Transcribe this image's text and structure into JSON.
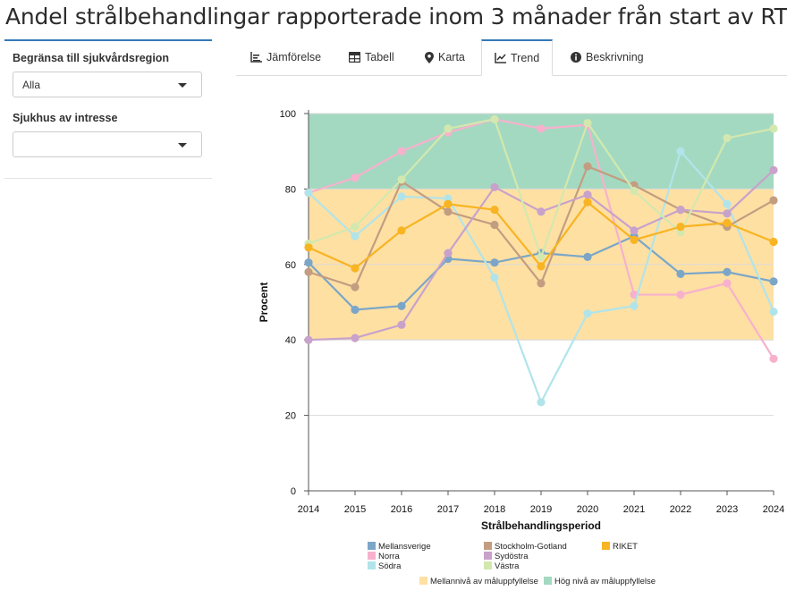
{
  "page": {
    "title": "Andel strålbehandlingar rapporterade inom 3 månader från start av RT"
  },
  "sidebar": {
    "region_label": "Begränsa till sjukvårdsregion",
    "region_value": "Alla",
    "hospital_label": "Sjukhus av intresse",
    "hospital_value": ""
  },
  "tabs": [
    {
      "label": "Jämförelse",
      "icon": "bar-chart-icon",
      "active": false
    },
    {
      "label": "Tabell",
      "icon": "table-icon",
      "active": false
    },
    {
      "label": "Karta",
      "icon": "map-marker-icon",
      "active": false
    },
    {
      "label": "Trend",
      "icon": "line-chart-icon",
      "active": true
    },
    {
      "label": "Beskrivning",
      "icon": "info-circle-icon",
      "active": false
    }
  ],
  "chart_data": {
    "type": "line",
    "xlabel": "Strålbehandlingsperiod",
    "ylabel": "Procent",
    "ylim": [
      0,
      100
    ],
    "yticks": [
      0,
      20,
      40,
      60,
      80,
      100
    ],
    "x": [
      2014,
      2015,
      2016,
      2017,
      2018,
      2019,
      2020,
      2021,
      2022,
      2023,
      2024
    ],
    "bands": [
      {
        "name": "Mellannivå av måluppfyllelse",
        "from": 40,
        "to": 80,
        "color": "#fee0a3"
      },
      {
        "name": "Hög nivå av måluppfyllelse",
        "from": 80,
        "to": 100,
        "color": "#a3d9c1"
      }
    ],
    "series": [
      {
        "name": "Mellansverige",
        "color": "#7ba6c8",
        "values": [
          60.5,
          48,
          49,
          61.5,
          60.5,
          63,
          62,
          67.5,
          57.5,
          58,
          55.5
        ]
      },
      {
        "name": "Norra",
        "color": "#f7b1cd",
        "values": [
          79,
          83,
          90,
          95,
          98.5,
          96,
          97,
          52,
          52,
          55,
          35
        ]
      },
      {
        "name": "Södra",
        "color": "#b1e4ea",
        "values": [
          79,
          67.5,
          78,
          77.5,
          56.5,
          23.5,
          47,
          49,
          90,
          76,
          47.5
        ]
      },
      {
        "name": "Stockholm-Gotland",
        "color": "#c39d81",
        "values": [
          58,
          54,
          82,
          74,
          70.5,
          55,
          86,
          81,
          74.5,
          70,
          77
        ]
      },
      {
        "name": "Sydöstra",
        "color": "#c8a2cb",
        "values": [
          40,
          40.5,
          44,
          63,
          80.5,
          74,
          78.5,
          69,
          74.5,
          73.5,
          85
        ]
      },
      {
        "name": "Västra",
        "color": "#d3e8ae",
        "values": [
          65.5,
          70,
          82.5,
          96,
          98.5,
          62,
          97.5,
          79.5,
          68.5,
          93.5,
          96
        ]
      },
      {
        "name": "RIKET",
        "color": "#f8b422",
        "values": [
          64.5,
          59,
          69,
          76,
          74.5,
          59.5,
          76.5,
          66.5,
          70,
          71,
          66
        ]
      }
    ]
  }
}
